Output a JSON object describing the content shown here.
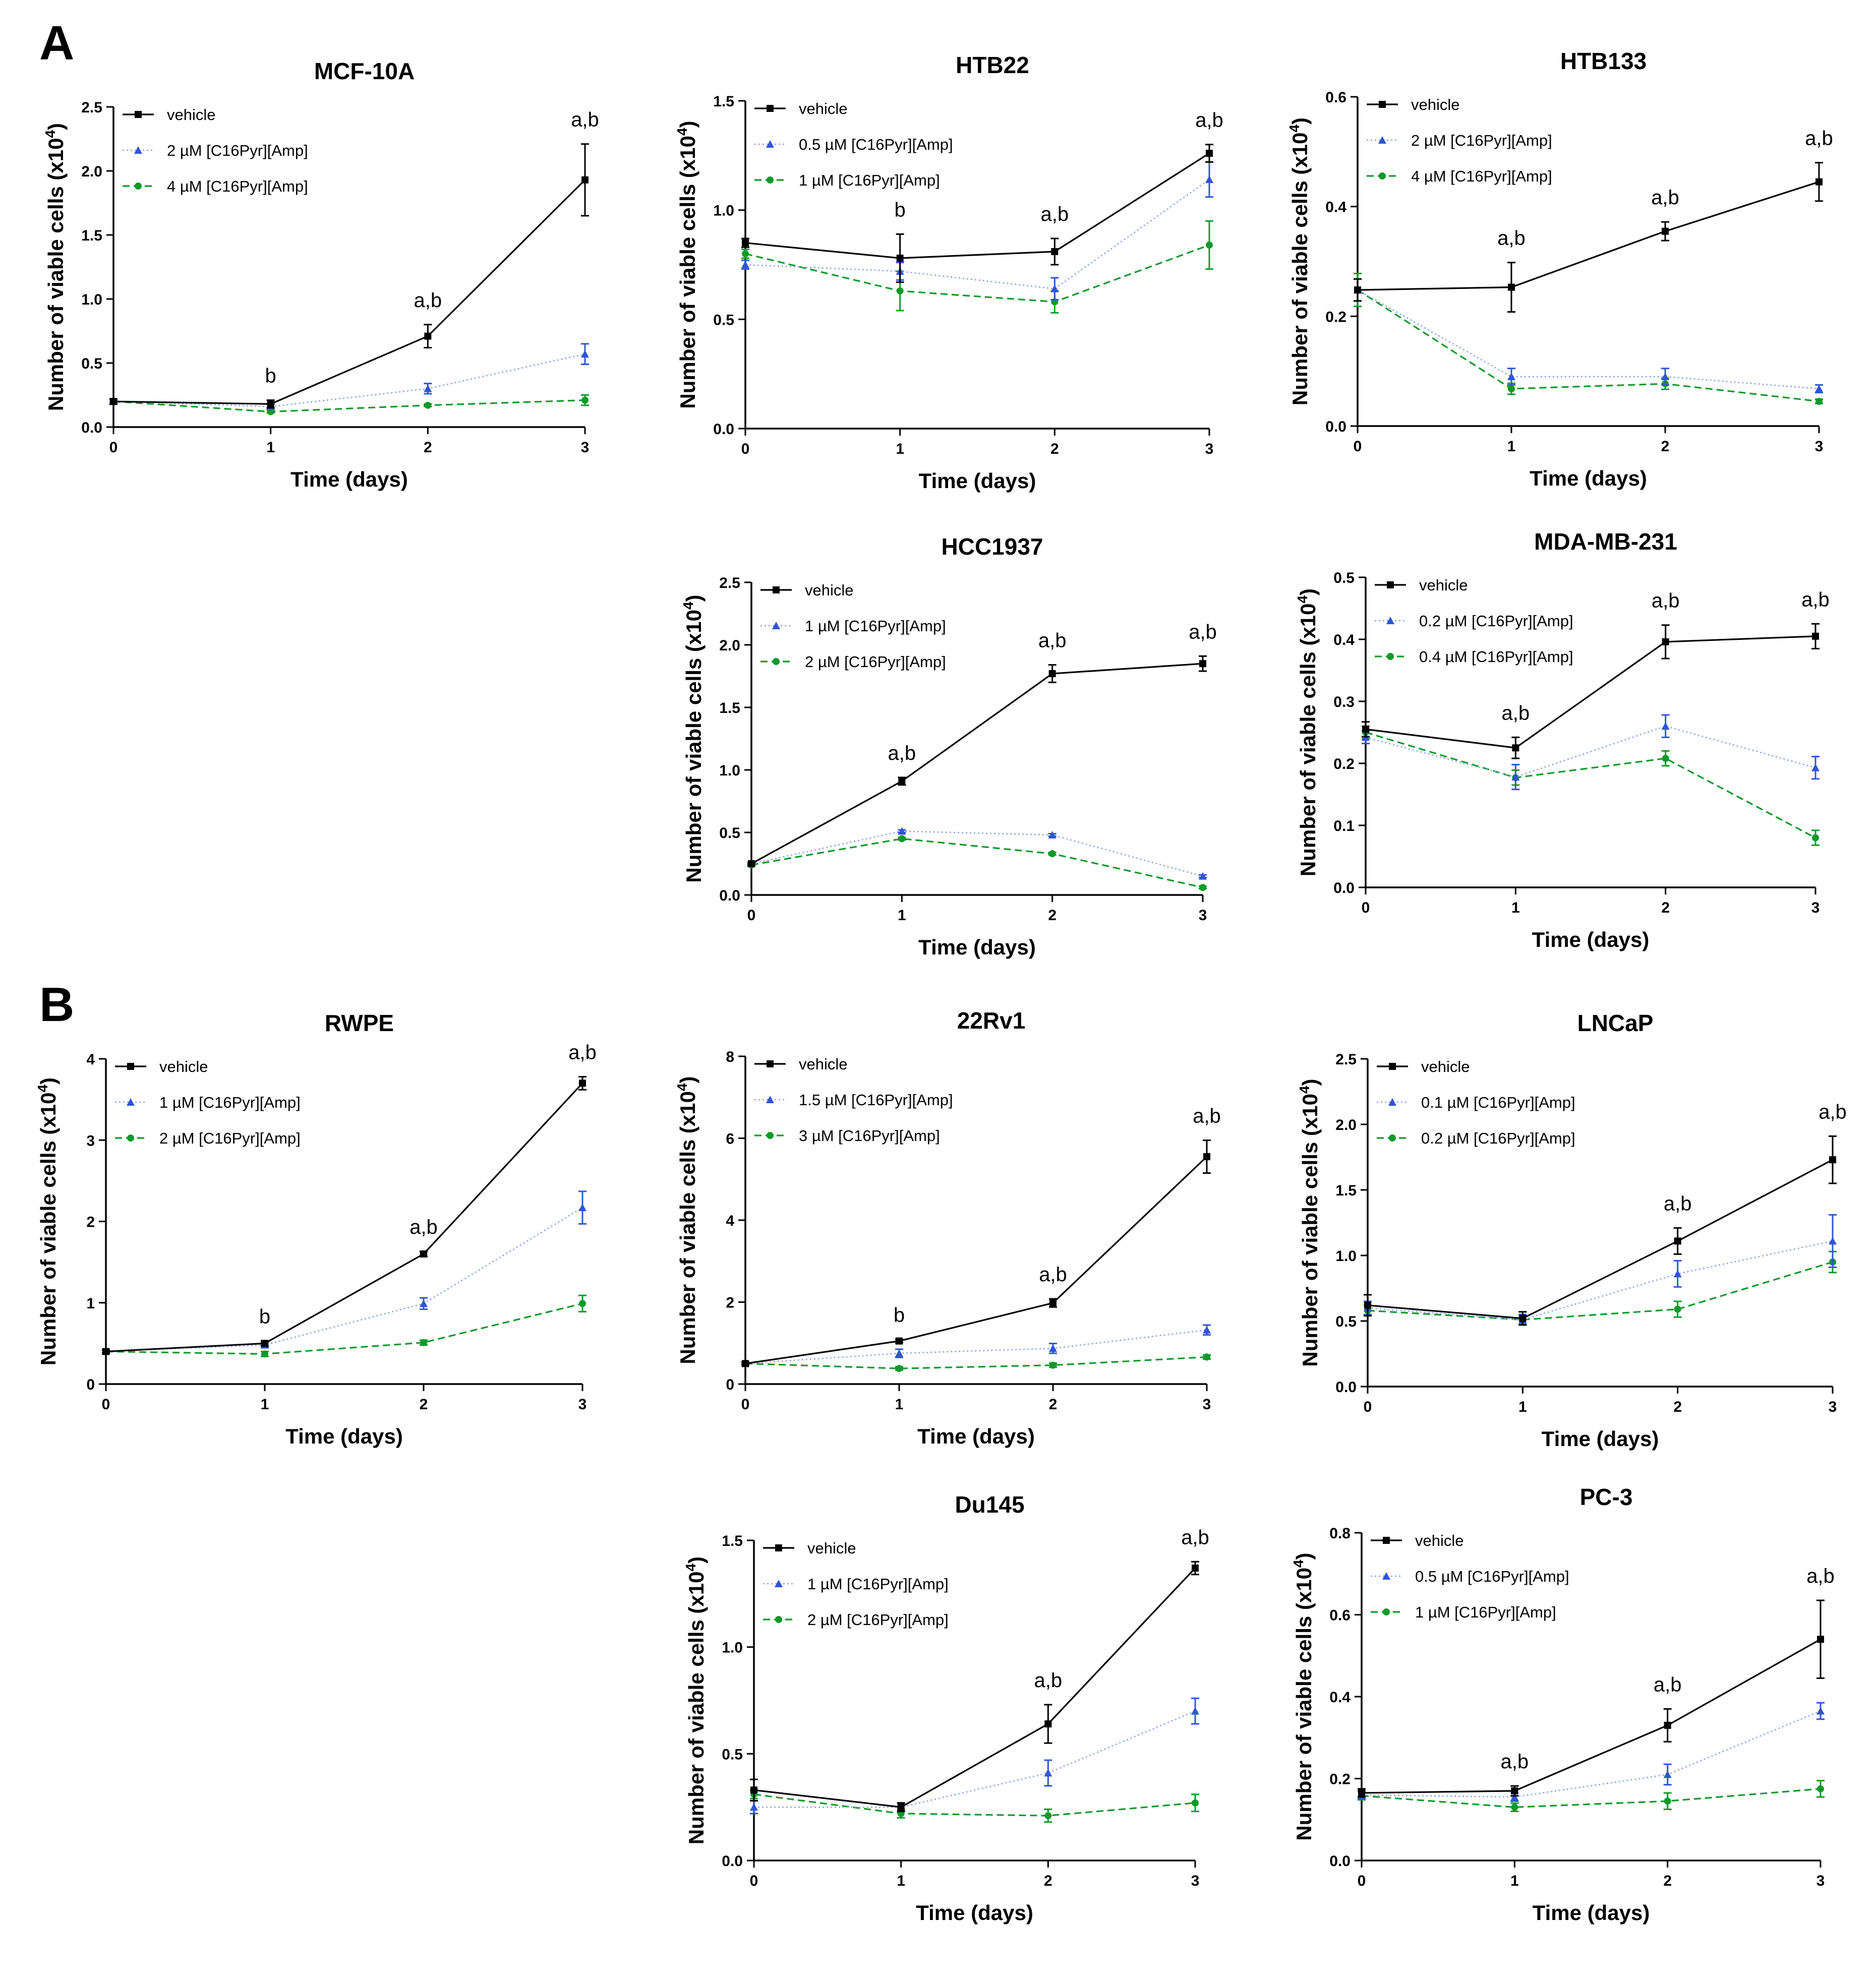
{
  "figure": {
    "panel_labels": [
      "A",
      "B"
    ],
    "colors": {
      "vehicle": "#000000",
      "low": "#2f55d4",
      "low_line": "#8aa4f0",
      "high": "#0e9a2a"
    }
  },
  "chart_data": [
    {
      "id": "mcf10a",
      "type": "line",
      "title": "MCF-10A",
      "xlabel": "Time (days)",
      "ylabel": "Number of viable cells (x10^4)",
      "x": [
        0,
        1,
        2,
        3
      ],
      "xticks": [
        "0",
        "1",
        "2",
        "3"
      ],
      "ylim": [
        0,
        2.5
      ],
      "yticks": [
        "0.0",
        "0.5",
        "1.0",
        "1.5",
        "2.0",
        "2.5"
      ],
      "series": [
        {
          "name": "vehicle",
          "style": "vehicle",
          "values": [
            0.2,
            0.18,
            0.71,
            1.93
          ],
          "errors": [
            0.02,
            0.03,
            0.09,
            0.28
          ]
        },
        {
          "name": "2 µM [C16Pyr][Amp]",
          "style": "low",
          "values": [
            0.2,
            0.16,
            0.3,
            0.57
          ],
          "errors": [
            0.01,
            0.02,
            0.04,
            0.08
          ]
        },
        {
          "name": "4 µM [C16Pyr][Amp]",
          "style": "high",
          "values": [
            0.2,
            0.12,
            0.17,
            0.21
          ],
          "errors": [
            0.01,
            0.01,
            0.01,
            0.04
          ]
        }
      ],
      "annotations": [
        {
          "x": 1,
          "text": "b"
        },
        {
          "x": 2,
          "text": "a,b"
        },
        {
          "x": 3,
          "text": "a,b"
        }
      ]
    },
    {
      "id": "htb22",
      "type": "line",
      "title": "HTB22",
      "xlabel": "Time (days)",
      "ylabel": "Number of viable cells (x10^4)",
      "x": [
        0,
        1,
        2,
        3
      ],
      "xticks": [
        "0",
        "1",
        "2",
        "3"
      ],
      "ylim": [
        0,
        1.5
      ],
      "yticks": [
        "0.0",
        "0.5",
        "1.0",
        "1.5"
      ],
      "series": [
        {
          "name": "vehicle",
          "style": "vehicle",
          "values": [
            0.85,
            0.78,
            0.81,
            1.26
          ],
          "errors": [
            0.02,
            0.11,
            0.06,
            0.04
          ]
        },
        {
          "name": "0.5 µM [C16Pyr][Amp]",
          "style": "low",
          "values": [
            0.75,
            0.72,
            0.64,
            1.14
          ],
          "errors": [
            0.02,
            0.04,
            0.05,
            0.08
          ]
        },
        {
          "name": "1 µM [C16Pyr][Amp]",
          "style": "high",
          "values": [
            0.8,
            0.63,
            0.58,
            0.84
          ],
          "errors": [
            0.02,
            0.09,
            0.05,
            0.11
          ]
        }
      ],
      "annotations": [
        {
          "x": 1,
          "text": "b"
        },
        {
          "x": 2,
          "text": "a,b"
        },
        {
          "x": 3,
          "text": "a,b"
        }
      ]
    },
    {
      "id": "htb133",
      "type": "line",
      "title": "HTB133",
      "xlabel": "Time (days)",
      "ylabel": "Number of viable cells (x10^4)",
      "x": [
        0,
        1,
        2,
        3
      ],
      "xticks": [
        "0",
        "1",
        "2",
        "3"
      ],
      "ylim": [
        0,
        0.6
      ],
      "yticks": [
        "0.0",
        "0.2",
        "0.4",
        "0.6"
      ],
      "series": [
        {
          "name": "vehicle",
          "style": "vehicle",
          "values": [
            0.248,
            0.253,
            0.355,
            0.445
          ],
          "errors": [
            0.02,
            0.045,
            0.017,
            0.035
          ]
        },
        {
          "name": "2 µM [C16Pyr][Amp]",
          "style": "low",
          "values": [
            0.248,
            0.09,
            0.09,
            0.068
          ],
          "errors": [
            0.02,
            0.015,
            0.015,
            0.007
          ]
        },
        {
          "name": "4 µM [C16Pyr][Amp]",
          "style": "high",
          "values": [
            0.248,
            0.068,
            0.077,
            0.045
          ],
          "errors": [
            0.03,
            0.01,
            0.01,
            0.004
          ]
        }
      ],
      "annotations": [
        {
          "x": 1,
          "text": "a,b"
        },
        {
          "x": 2,
          "text": "a,b"
        },
        {
          "x": 3,
          "text": "a,b"
        }
      ]
    },
    {
      "id": "hcc1937",
      "type": "line",
      "title": "HCC1937",
      "xlabel": "Time (days)",
      "ylabel": "Number of viable cells (x10^4)",
      "x": [
        0,
        1,
        2,
        3
      ],
      "xticks": [
        "0",
        "1",
        "2",
        "3"
      ],
      "ylim": [
        0,
        2.5
      ],
      "yticks": [
        "0.0",
        "0.5",
        "1.0",
        "1.5",
        "2.0",
        "2.5"
      ],
      "series": [
        {
          "name": "vehicle",
          "style": "vehicle",
          "values": [
            0.25,
            0.91,
            1.77,
            1.85
          ],
          "errors": [
            0.01,
            0.03,
            0.07,
            0.06
          ]
        },
        {
          "name": "1 µM [C16Pyr][Amp]",
          "style": "low",
          "values": [
            0.25,
            0.51,
            0.48,
            0.15
          ],
          "errors": [
            0.01,
            0.01,
            0.01,
            0.01
          ]
        },
        {
          "name": "2 µM [C16Pyr][Amp]",
          "style": "high",
          "values": [
            0.24,
            0.45,
            0.33,
            0.06
          ],
          "errors": [
            0.01,
            0.01,
            0.01,
            0.01
          ]
        }
      ],
      "annotations": [
        {
          "x": 1,
          "text": "a,b"
        },
        {
          "x": 2,
          "text": "a,b"
        },
        {
          "x": 3,
          "text": "a,b"
        }
      ]
    },
    {
      "id": "mdamb231",
      "type": "line",
      "title": "MDA-MB-231",
      "xlabel": "Time (days)",
      "ylabel": "Number of viable cells (x10^4)",
      "x": [
        0,
        1,
        2,
        3
      ],
      "xticks": [
        "0",
        "1",
        "2",
        "3"
      ],
      "ylim": [
        0,
        0.5
      ],
      "yticks": [
        "0.0",
        "0.1",
        "0.2",
        "0.3",
        "0.4",
        "0.5"
      ],
      "series": [
        {
          "name": "vehicle",
          "style": "vehicle",
          "values": [
            0.255,
            0.225,
            0.396,
            0.405
          ],
          "errors": [
            0.012,
            0.017,
            0.027,
            0.02
          ]
        },
        {
          "name": "0.2 µM [C16Pyr][Amp]",
          "style": "low",
          "values": [
            0.242,
            0.178,
            0.26,
            0.193
          ],
          "errors": [
            0.01,
            0.02,
            0.018,
            0.018
          ]
        },
        {
          "name": "0.4 µM [C16Pyr][Amp]",
          "style": "high",
          "values": [
            0.25,
            0.177,
            0.208,
            0.08
          ],
          "errors": [
            0.01,
            0.012,
            0.012,
            0.012
          ]
        }
      ],
      "annotations": [
        {
          "x": 1,
          "text": "a,b"
        },
        {
          "x": 2,
          "text": "a,b"
        },
        {
          "x": 3,
          "text": "a,b"
        }
      ]
    },
    {
      "id": "rwpe",
      "type": "line",
      "title": "RWPE",
      "xlabel": "Time (days)",
      "ylabel": "Number of viable cells (x10^4)",
      "x": [
        0,
        1,
        2,
        3
      ],
      "xticks": [
        "0",
        "1",
        "2",
        "3"
      ],
      "ylim": [
        0,
        4
      ],
      "yticks": [
        "0",
        "1",
        "2",
        "3",
        "4"
      ],
      "series": [
        {
          "name": "vehicle",
          "style": "vehicle",
          "values": [
            0.4,
            0.5,
            1.6,
            3.7
          ],
          "errors": [
            0.02,
            0.03,
            0.03,
            0.08
          ]
        },
        {
          "name": "1 µM [C16Pyr][Amp]",
          "style": "low",
          "values": [
            0.4,
            0.48,
            0.99,
            2.17
          ],
          "errors": [
            0.02,
            0.03,
            0.07,
            0.2
          ]
        },
        {
          "name": "2 µM [C16Pyr][Amp]",
          "style": "high",
          "values": [
            0.4,
            0.37,
            0.51,
            0.99
          ],
          "errors": [
            0.02,
            0.03,
            0.03,
            0.1
          ]
        }
      ],
      "annotations": [
        {
          "x": 1,
          "text": "b"
        },
        {
          "x": 2,
          "text": "a,b"
        },
        {
          "x": 3,
          "text": "a,b"
        }
      ]
    },
    {
      "id": "22rv1",
      "type": "line",
      "title": "22Rv1",
      "xlabel": "Time (days)",
      "ylabel": "Number of viable cells (x10^4)",
      "x": [
        0,
        1,
        2,
        3
      ],
      "xticks": [
        "0",
        "1",
        "2",
        "3"
      ],
      "ylim": [
        0,
        8
      ],
      "yticks": [
        "0",
        "2",
        "4",
        "6",
        "8"
      ],
      "series": [
        {
          "name": "vehicle",
          "style": "vehicle",
          "values": [
            0.5,
            1.05,
            1.98,
            5.55
          ],
          "errors": [
            0.03,
            0.04,
            0.1,
            0.4
          ]
        },
        {
          "name": "1.5 µM [C16Pyr][Amp]",
          "style": "low",
          "values": [
            0.5,
            0.75,
            0.87,
            1.32
          ],
          "errors": [
            0.03,
            0.1,
            0.12,
            0.12
          ]
        },
        {
          "name": "3 µM [C16Pyr][Amp]",
          "style": "high",
          "values": [
            0.5,
            0.38,
            0.46,
            0.66
          ],
          "errors": [
            0.03,
            0.04,
            0.05,
            0.05
          ]
        }
      ],
      "annotations": [
        {
          "x": 1,
          "text": "b"
        },
        {
          "x": 2,
          "text": "a,b"
        },
        {
          "x": 3,
          "text": "a,b"
        }
      ]
    },
    {
      "id": "lncap",
      "type": "line",
      "title": "LNCaP",
      "xlabel": "Time (days)",
      "ylabel": "Number of viable cells (x10^4)",
      "x": [
        0,
        1,
        2,
        3
      ],
      "xticks": [
        "0",
        "1",
        "2",
        "3"
      ],
      "ylim": [
        0,
        2.5
      ],
      "yticks": [
        "0.0",
        "0.5",
        "1.0",
        "1.5",
        "2.0",
        "2.5"
      ],
      "series": [
        {
          "name": "vehicle",
          "style": "vehicle",
          "values": [
            0.62,
            0.52,
            1.11,
            1.73
          ],
          "errors": [
            0.08,
            0.05,
            0.1,
            0.18
          ]
        },
        {
          "name": "0.1 µM [C16Pyr][Amp]",
          "style": "low",
          "values": [
            0.6,
            0.51,
            0.86,
            1.11
          ],
          "errors": [
            0.05,
            0.04,
            0.1,
            0.2
          ]
        },
        {
          "name": "0.2 µM [C16Pyr][Amp]",
          "style": "high",
          "values": [
            0.58,
            0.51,
            0.59,
            0.95
          ],
          "errors": [
            0.04,
            0.03,
            0.06,
            0.08
          ]
        }
      ],
      "annotations": [
        {
          "x": 2,
          "text": "a,b"
        },
        {
          "x": 3,
          "text": "a,b"
        }
      ]
    },
    {
      "id": "du145",
      "type": "line",
      "title": "Du145",
      "xlabel": "Time (days)",
      "ylabel": "Number of viable cells (x10^4)",
      "x": [
        0,
        1,
        2,
        3
      ],
      "xticks": [
        "0",
        "1",
        "2",
        "3"
      ],
      "ylim": [
        0,
        1.5
      ],
      "yticks": [
        "0.0",
        "0.5",
        "1.0",
        "1.5"
      ],
      "series": [
        {
          "name": "vehicle",
          "style": "vehicle",
          "values": [
            0.33,
            0.25,
            0.64,
            1.37
          ],
          "errors": [
            0.05,
            0.02,
            0.09,
            0.03
          ]
        },
        {
          "name": "1 µM [C16Pyr][Amp]",
          "style": "low",
          "values": [
            0.25,
            0.25,
            0.41,
            0.7
          ],
          "errors": [
            0.03,
            0.02,
            0.06,
            0.06
          ]
        },
        {
          "name": "2 µM [C16Pyr][Amp]",
          "style": "high",
          "values": [
            0.31,
            0.22,
            0.21,
            0.27
          ],
          "errors": [
            0.02,
            0.02,
            0.03,
            0.04
          ]
        }
      ],
      "annotations": [
        {
          "x": 2,
          "text": "a,b"
        },
        {
          "x": 3,
          "text": "a,b"
        }
      ]
    },
    {
      "id": "pc3",
      "type": "line",
      "title": "PC-3",
      "xlabel": "Time (days)",
      "ylabel": "Number of viable cells (x10^4)",
      "x": [
        0,
        1,
        2,
        3
      ],
      "xticks": [
        "0",
        "1",
        "2",
        "3"
      ],
      "ylim": [
        0,
        0.8
      ],
      "yticks": [
        "0.0",
        "0.2",
        "0.4",
        "0.6",
        "0.8"
      ],
      "series": [
        {
          "name": "vehicle",
          "style": "vehicle",
          "values": [
            0.165,
            0.17,
            0.33,
            0.54
          ],
          "errors": [
            0.01,
            0.012,
            0.04,
            0.095
          ]
        },
        {
          "name": "0.5 µM [C16Pyr][Amp]",
          "style": "low",
          "values": [
            0.16,
            0.155,
            0.21,
            0.365
          ],
          "errors": [
            0.01,
            0.01,
            0.025,
            0.02
          ]
        },
        {
          "name": "1 µM [C16Pyr][Amp]",
          "style": "high",
          "values": [
            0.158,
            0.13,
            0.145,
            0.175
          ],
          "errors": [
            0.01,
            0.01,
            0.02,
            0.02
          ]
        }
      ],
      "annotations": [
        {
          "x": 1,
          "text": "a,b"
        },
        {
          "x": 2,
          "text": "a,b"
        },
        {
          "x": 3,
          "text": "a,b"
        }
      ]
    }
  ]
}
